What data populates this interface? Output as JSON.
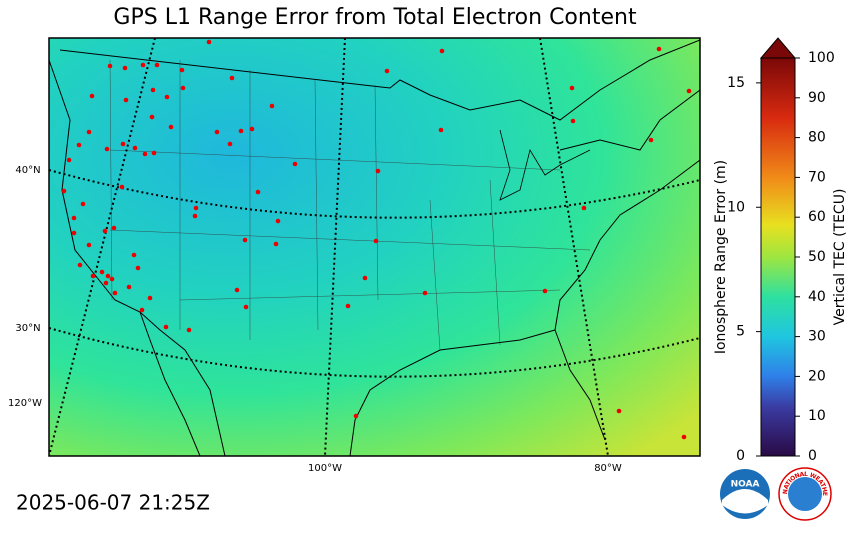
{
  "title": "GPS L1 Range Error from Total Electron Content",
  "timestamp": "2025-06-07 21:25Z",
  "map": {
    "lat_labels": [
      "40°N",
      "30°N"
    ],
    "lon_labels": [
      "120°W",
      "100°W",
      "80°W"
    ]
  },
  "colorbar": {
    "left_label": "Ionosphere Range Error (m)",
    "left_lim": [
      0,
      16
    ],
    "left_ticks": [
      0,
      5,
      10,
      15
    ],
    "right_label": "Vertical TEC (TECU)",
    "right_lim": [
      0,
      100
    ],
    "right_ticks": [
      0,
      10,
      20,
      30,
      40,
      50,
      60,
      70,
      80,
      90,
      100
    ]
  },
  "logos": {
    "noaa": "NOAA",
    "nws": "NATIONAL WEATHER SERVICE"
  }
}
